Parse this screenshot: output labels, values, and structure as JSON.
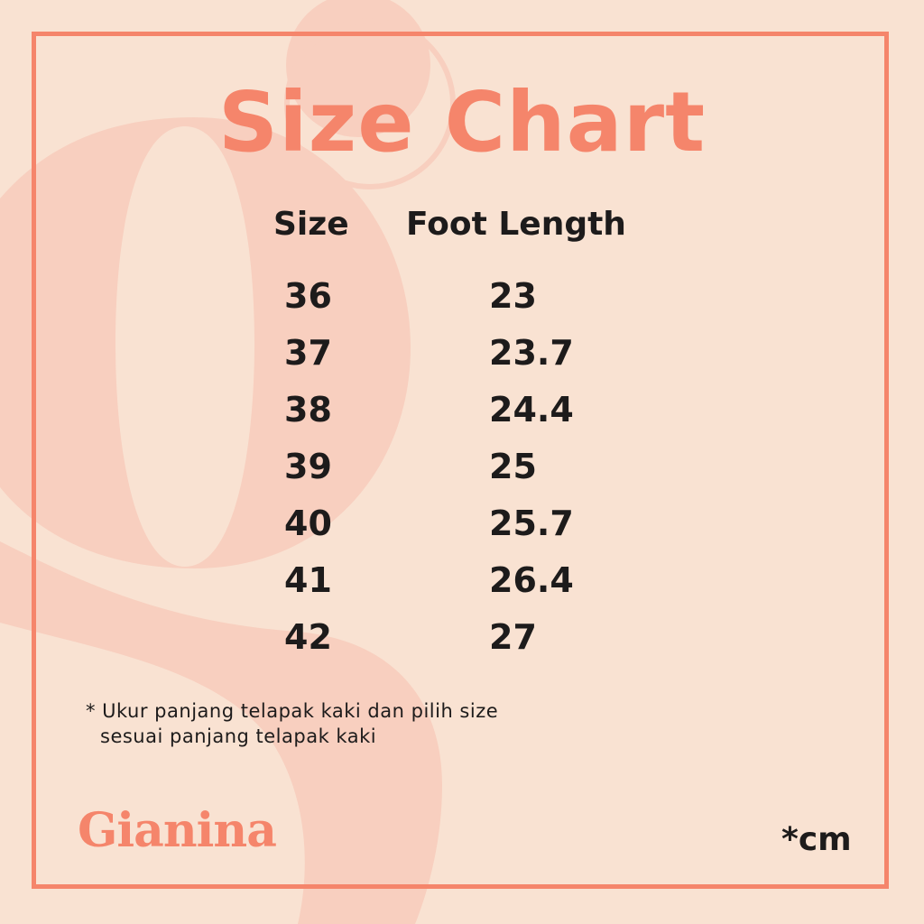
{
  "colors": {
    "background": "#f9e2d2",
    "accent": "#f5856b",
    "shape": "#f8cfbf",
    "text": "#1d1b1b"
  },
  "title": "Size Chart",
  "chart_data": {
    "type": "table",
    "columns": [
      "Size",
      "Foot Length"
    ],
    "rows": [
      [
        "36",
        "23"
      ],
      [
        "37",
        "23.7"
      ],
      [
        "38",
        "24.4"
      ],
      [
        "39",
        "25"
      ],
      [
        "40",
        "25.7"
      ],
      [
        "41",
        "26.4"
      ],
      [
        "42",
        "27"
      ]
    ]
  },
  "note": {
    "line1": "* Ukur panjang telapak kaki dan pilih size",
    "line2": "sesuai panjang telapak kaki"
  },
  "brand": "Gianina",
  "unit": "*cm"
}
